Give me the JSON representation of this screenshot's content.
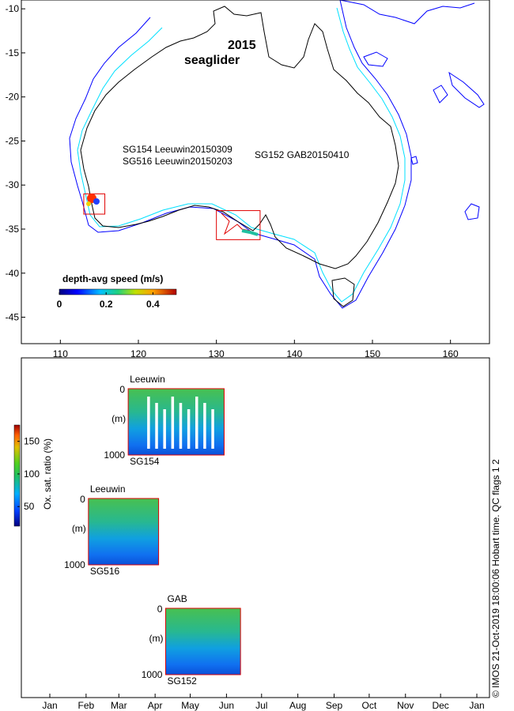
{
  "chart_data": [
    {
      "type": "scatter",
      "title": "2015 seaglider",
      "title_year": "2015",
      "title_word": "seaglider",
      "xlim": [
        105,
        165
      ],
      "ylim": [
        -48,
        -9
      ],
      "xticks": [
        110,
        120,
        130,
        140,
        150,
        160
      ],
      "yticks": [
        -10,
        -15,
        -20,
        -25,
        -30,
        -35,
        -40,
        -45
      ],
      "deployment_labels": [
        "SG154 Leeuwin20150309",
        "SG516 Leeuwin20150203",
        "SG152 GAB20150410"
      ],
      "regions": [
        {
          "name": "Leeuwin",
          "lon": [
            113,
            115.7
          ],
          "lat": [
            -33.3,
            -31.0
          ]
        },
        {
          "name": "GAB",
          "lon": [
            130.0,
            135.6
          ],
          "lat": [
            -36.2,
            -32.9
          ]
        }
      ],
      "colorbar": {
        "label": "depth-avg speed (m/s)",
        "range": [
          0,
          0.5
        ],
        "ticks": [
          0,
          0.2,
          0.4
        ],
        "tick_labels": [
          "0",
          "0.2",
          "0.4"
        ]
      },
      "colors": {
        "coast": "#000000",
        "isobath_200": "#00e0ff",
        "isobath_2000": "#0000ff",
        "box": "#e00000"
      }
    },
    {
      "type": "heatmap",
      "colorbar": {
        "label": "Ox. sat. ratio (%)",
        "range": [
          20,
          175
        ],
        "ticks": [
          50,
          100,
          150
        ],
        "tick_labels": [
          "50",
          "100",
          "150"
        ]
      },
      "months": [
        "Jan",
        "Feb",
        "Mar",
        "Apr",
        "May",
        "Jun",
        "Jul",
        "Aug",
        "Sep",
        "Oct",
        "Nov",
        "Dec",
        "Jan"
      ],
      "depth_range": [
        0,
        1000
      ],
      "depth_unit": "(m)",
      "depth_tick_labels": [
        "0",
        "1000"
      ],
      "deployments": [
        {
          "region": "Leeuwin",
          "glider": "SG154",
          "start_day": 67,
          "end_day": 149
        },
        {
          "region": "Leeuwin",
          "glider": "SG516",
          "start_day": 33,
          "end_day": 93
        },
        {
          "region": "GAB",
          "glider": "SG152",
          "start_day": 99,
          "end_day": 163
        }
      ]
    }
  ],
  "footer_text": "© IMOS 21-Oct-2019 18:00:06 Hobart time. QC flags 1  2"
}
